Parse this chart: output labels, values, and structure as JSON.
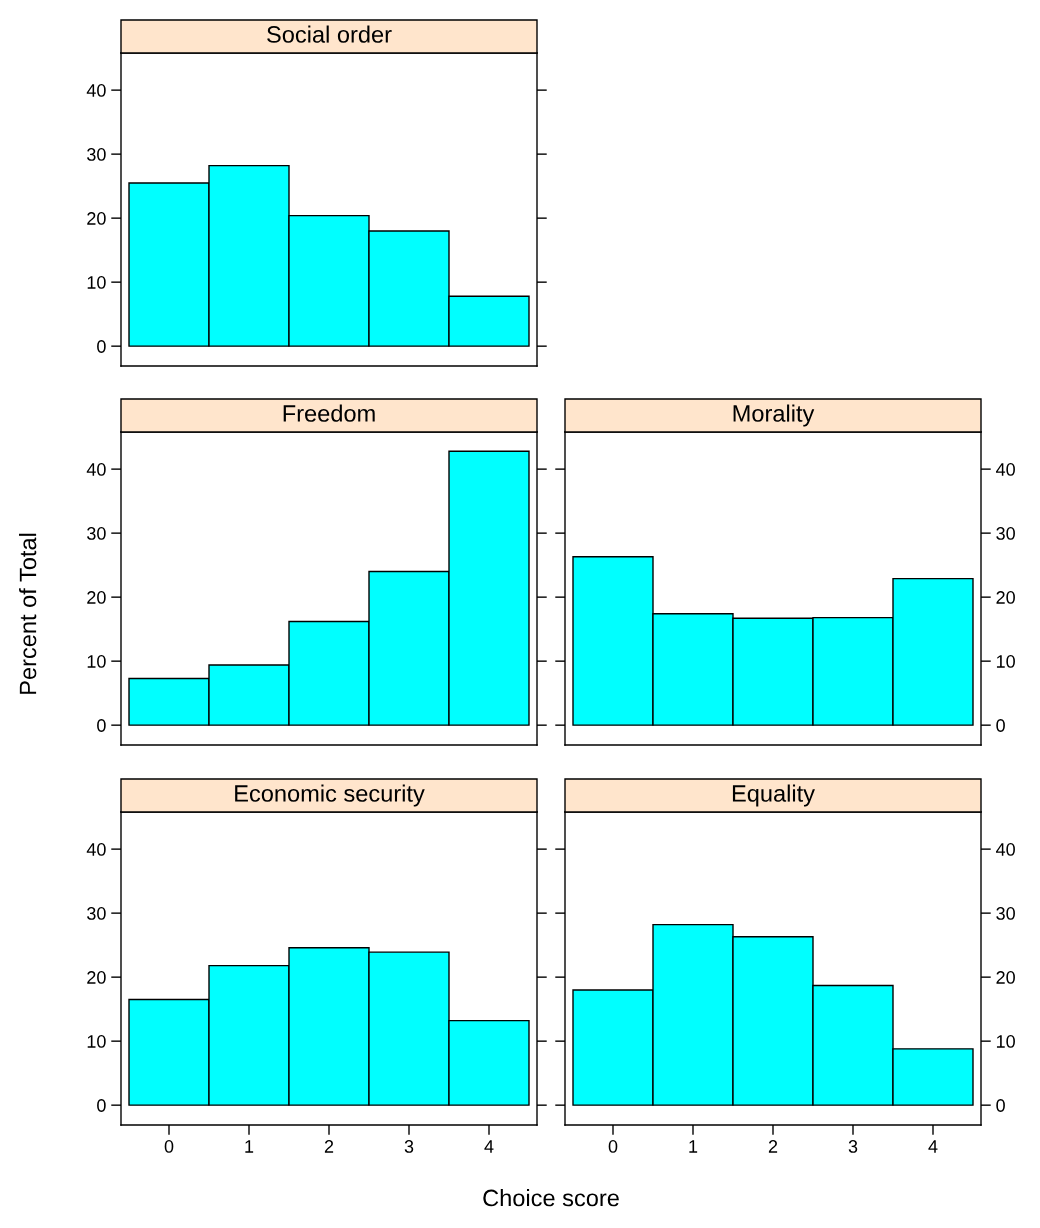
{
  "chart_data": [
    {
      "type": "histogram",
      "title": "Social order",
      "bins": [
        -0.5,
        0.5,
        1.5,
        2.5,
        3.5,
        4.5
      ],
      "values": [
        25.5,
        28.2,
        20.4,
        18.0,
        7.8
      ],
      "color": "#00ffff",
      "xlim": [
        -0.6,
        4.6
      ],
      "xticks": [
        0,
        1,
        2,
        3,
        4
      ],
      "ylim": [
        -3.1,
        45.8
      ],
      "yticks": [
        0,
        10,
        20,
        30,
        40
      ],
      "tick_labels": "y",
      "grid": false
    },
    {
      "type": "histogram",
      "title": "Freedom",
      "ylabel": "Percent of Total",
      "bins": [
        -0.5,
        0.5,
        1.5,
        2.5,
        3.5,
        4.5
      ],
      "values": [
        7.3,
        9.4,
        16.2,
        24.0,
        42.8
      ],
      "color": "#00ffff",
      "xlim": [
        -0.6,
        4.6
      ],
      "xticks": [
        0,
        1,
        2,
        3,
        4
      ],
      "ylim": [
        -3.1,
        45.8
      ],
      "yticks": [
        0,
        10,
        20,
        30,
        40
      ],
      "tick_labels": "y",
      "grid": false
    },
    {
      "type": "histogram",
      "title": "Morality",
      "bins": [
        -0.5,
        0.5,
        1.5,
        2.5,
        3.5,
        4.5
      ],
      "values": [
        26.3,
        17.4,
        16.7,
        16.8,
        22.9
      ],
      "color": "#00ffff",
      "xlim": [
        -0.6,
        4.6
      ],
      "xticks": [
        0,
        1,
        2,
        3,
        4
      ],
      "ylim": [
        -3.1,
        45.8
      ],
      "yticks": [
        0,
        10,
        20,
        30,
        40
      ],
      "tick_labels": "y",
      "grid": false
    },
    {
      "type": "histogram",
      "title": "Economic security",
      "xlabel": "Choice score",
      "bins": [
        -0.5,
        0.5,
        1.5,
        2.5,
        3.5,
        4.5
      ],
      "values": [
        16.5,
        21.8,
        24.6,
        23.9,
        13.2
      ],
      "color": "#00ffff",
      "xlim": [
        -0.6,
        4.6
      ],
      "xticks": [
        0,
        1,
        2,
        3,
        4
      ],
      "ylim": [
        -3.1,
        45.8
      ],
      "yticks": [
        0,
        10,
        20,
        30,
        40
      ],
      "grid": false
    },
    {
      "type": "histogram",
      "title": "Equality",
      "bins": [
        -0.5,
        0.5,
        1.5,
        2.5,
        3.5,
        4.5
      ],
      "values": [
        18.0,
        28.2,
        26.3,
        18.7,
        8.8
      ],
      "color": "#00ffff",
      "xlim": [
        -0.6,
        4.6
      ],
      "xticks": [
        0,
        1,
        2,
        3,
        4
      ],
      "ylim": [
        -3.1,
        45.8
      ],
      "yticks": [
        0,
        10,
        20,
        30,
        40
      ],
      "grid": false
    }
  ]
}
